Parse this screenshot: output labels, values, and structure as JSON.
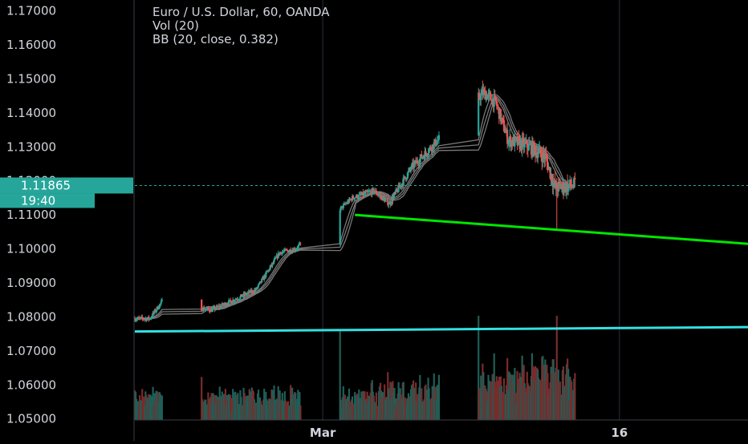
{
  "chart_data": {
    "type": "candlestick",
    "legend": {
      "title": "Euro / U.S. Dollar, 60, OANDA",
      "volume": "Vol (20)",
      "bands": "BB (20, close, 0.382)"
    },
    "y_axis": {
      "ticks": [
        "1.17000",
        "1.16000",
        "1.15000",
        "1.14000",
        "1.13000",
        "1.12000",
        "1.11000",
        "1.10000",
        "1.09000",
        "1.08000",
        "1.07000",
        "1.06000",
        "1.05000"
      ],
      "range": [
        1.0497,
        1.1732
      ]
    },
    "x_axis": {
      "ticks": [
        {
          "label": "Mar",
          "date": "2020-03-01"
        },
        {
          "label": "16",
          "date": "2020-03-16"
        }
      ],
      "start": "2020-02-20T12:00",
      "end": "2020-03-22T12:00"
    },
    "current_price": {
      "value": "1.11865",
      "countdown": "19:40",
      "price": 1.11865
    },
    "price_anchors": [
      {
        "t": "2020-02-20T12:00",
        "p": 1.0795
      },
      {
        "t": "2020-02-21T06:00",
        "p": 1.0795
      },
      {
        "t": "2020-02-21T21:00",
        "p": 1.0845
      },
      {
        "t": "2020-02-24T09:00",
        "p": 1.082
      },
      {
        "t": "2020-02-25T12:00",
        "p": 1.085
      },
      {
        "t": "2020-02-26T15:00",
        "p": 1.088
      },
      {
        "t": "2020-02-27T20:00",
        "p": 1.099
      },
      {
        "t": "2020-02-28T15:00",
        "p": 1.1
      },
      {
        "t": "2020-03-02T12:00",
        "p": 1.115
      },
      {
        "t": "2020-03-03T14:00",
        "p": 1.117
      },
      {
        "t": "2020-03-04T09:00",
        "p": 1.1135
      },
      {
        "t": "2020-03-05T12:00",
        "p": 1.124
      },
      {
        "t": "2020-03-06T12:00",
        "p": 1.13
      },
      {
        "t": "2020-03-09T03:00",
        "p": 1.146
      },
      {
        "t": "2020-03-09T18:00",
        "p": 1.143
      },
      {
        "t": "2020-03-10T09:00",
        "p": 1.132
      },
      {
        "t": "2020-03-11T12:00",
        "p": 1.13
      },
      {
        "t": "2020-03-12T06:00",
        "p": 1.127
      },
      {
        "t": "2020-03-12T18:00",
        "p": 1.118
      },
      {
        "t": "2020-03-13T18:00",
        "p": 1.1188
      }
    ],
    "trend_lines": [
      {
        "color": "#00e600",
        "points": [
          {
            "t": "2020-03-02T15:00",
            "p": 1.11
          },
          {
            "t": "2020-03-22T12:00",
            "p": 1.1015
          }
        ]
      },
      {
        "color": "#33e0e0",
        "points": [
          {
            "t": "2020-02-20T12:00",
            "p": 1.0757
          },
          {
            "t": "2020-03-22T12:00",
            "p": 1.077
          }
        ]
      }
    ],
    "colors": {
      "background": "#000000",
      "up": "#26a69a",
      "down": "#ef5350",
      "wick": "#8a8a8a",
      "band": "#787878",
      "price_line": "#26a69a",
      "price_label_bg": "#26a69a",
      "grid": "#2a2e39",
      "axis_line": "#3a3e49",
      "text": "#d1d4dc"
    }
  }
}
